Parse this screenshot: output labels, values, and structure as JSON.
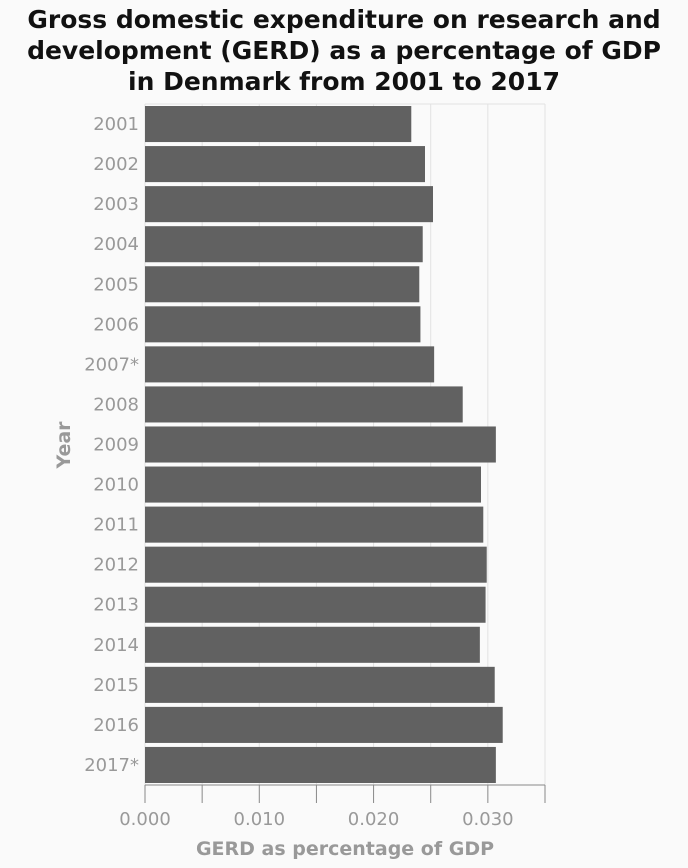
{
  "chart_data": {
    "type": "bar",
    "orientation": "horizontal",
    "title_lines": [
      "Gross domestic expenditure on research and",
      "development (GERD) as a percentage of GDP",
      "in Denmark from 2001 to 2017"
    ],
    "xlabel": "GERD as percentage of GDP",
    "ylabel": "Year",
    "categories": [
      "2001",
      "2002",
      "2003",
      "2004",
      "2005",
      "2006",
      "2007*",
      "2008",
      "2009",
      "2010",
      "2011",
      "2012",
      "2013",
      "2014",
      "2015",
      "2016",
      "2017*"
    ],
    "values": [
      0.0233,
      0.0245,
      0.0252,
      0.0243,
      0.024,
      0.0241,
      0.0253,
      0.0278,
      0.0307,
      0.0294,
      0.0296,
      0.0299,
      0.0298,
      0.0293,
      0.0306,
      0.0313,
      0.0307
    ],
    "xlim": [
      0,
      0.035
    ],
    "xticks": [
      0,
      0.005,
      0.01,
      0.015,
      0.02,
      0.025,
      0.03,
      0.035
    ],
    "xtick_labels": [
      "0.000",
      "",
      "0.010",
      "",
      "0.020",
      "",
      "0.030",
      ""
    ],
    "grid": true,
    "bar_color": "#616161"
  }
}
